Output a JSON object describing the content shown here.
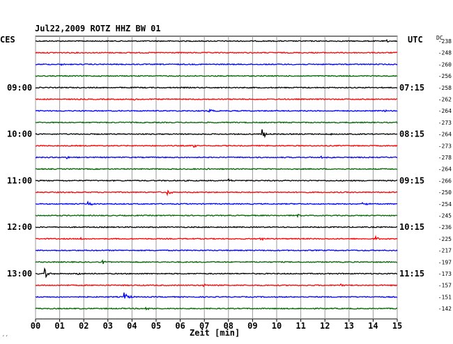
{
  "chart_data": {
    "type": "line",
    "title": "Jul22,2009   ROTZ HHZ BW 01",
    "xlabel": "Zeit [min]",
    "x_ticks": [
      "00",
      "01",
      "02",
      "03",
      "04",
      "05",
      "06",
      "07",
      "08",
      "09",
      "10",
      "11",
      "12",
      "13",
      "14",
      "15"
    ],
    "xlim": [
      0,
      15
    ],
    "left_header": "CES",
    "right_header": "UTC",
    "dc_header": "DC",
    "footer_mark": "´´",
    "grid": true,
    "trace_colors": [
      "#000000",
      "#ff0000",
      "#0000ff",
      "#006600"
    ],
    "left_time_labels": [
      {
        "row": 4,
        "label": "09:00"
      },
      {
        "row": 8,
        "label": "10:00"
      },
      {
        "row": 12,
        "label": "11:00"
      },
      {
        "row": 16,
        "label": "12:00"
      },
      {
        "row": 20,
        "label": "13:00"
      }
    ],
    "right_time_labels": [
      {
        "row": 4,
        "label": "07:15"
      },
      {
        "row": 8,
        "label": "08:15"
      },
      {
        "row": 12,
        "label": "09:15"
      },
      {
        "row": 16,
        "label": "10:15"
      },
      {
        "row": 20,
        "label": "11:15"
      }
    ],
    "dc_offsets": [
      "-238",
      "-248",
      "-260",
      "-256",
      "-258",
      "-262",
      "-264",
      "-273",
      "-264",
      "-273",
      "-278",
      "-264",
      "-266",
      "-250",
      "-254",
      "-245",
      "-236",
      "-225",
      "-217",
      "-197",
      "-173",
      "-157",
      "-151",
      "-142"
    ],
    "events": [
      {
        "row": 0,
        "minute": 14.6,
        "amp": 1.5
      },
      {
        "row": 2,
        "minute": 1.1,
        "amp": 1.2
      },
      {
        "row": 5,
        "minute": 4.1,
        "amp": 1.8
      },
      {
        "row": 6,
        "minute": 7.2,
        "amp": 2.5
      },
      {
        "row": 6,
        "minute": 14.5,
        "amp": 1.5
      },
      {
        "row": 7,
        "minute": 15.0,
        "amp": 2.5
      },
      {
        "row": 8,
        "minute": 9.4,
        "amp": 9
      },
      {
        "row": 8,
        "minute": 12.3,
        "amp": 1.8
      },
      {
        "row": 9,
        "minute": 6.6,
        "amp": 3.5
      },
      {
        "row": 10,
        "minute": 1.3,
        "amp": 2.2
      },
      {
        "row": 10,
        "minute": 11.8,
        "amp": 3
      },
      {
        "row": 11,
        "minute": 7.1,
        "amp": 1.5
      },
      {
        "row": 12,
        "minute": 8.0,
        "amp": 2
      },
      {
        "row": 13,
        "minute": 5.5,
        "amp": 4.5
      },
      {
        "row": 14,
        "minute": 2.2,
        "amp": 3.5
      },
      {
        "row": 14,
        "minute": 13.6,
        "amp": 2.5
      },
      {
        "row": 15,
        "minute": 10.9,
        "amp": 2
      },
      {
        "row": 17,
        "minute": 9.3,
        "amp": 3.5
      },
      {
        "row": 17,
        "minute": 14.1,
        "amp": 3.5
      },
      {
        "row": 17,
        "minute": 1.9,
        "amp": 1.5
      },
      {
        "row": 19,
        "minute": 2.8,
        "amp": 2.5
      },
      {
        "row": 20,
        "minute": 0.4,
        "amp": 7
      },
      {
        "row": 20,
        "minute": 1.8,
        "amp": 1.5
      },
      {
        "row": 21,
        "minute": 7.0,
        "amp": 2
      },
      {
        "row": 21,
        "minute": 12.7,
        "amp": 1.8
      },
      {
        "row": 22,
        "minute": 3.7,
        "amp": 6.5
      },
      {
        "row": 23,
        "minute": 4.6,
        "amp": 2.5
      }
    ]
  }
}
